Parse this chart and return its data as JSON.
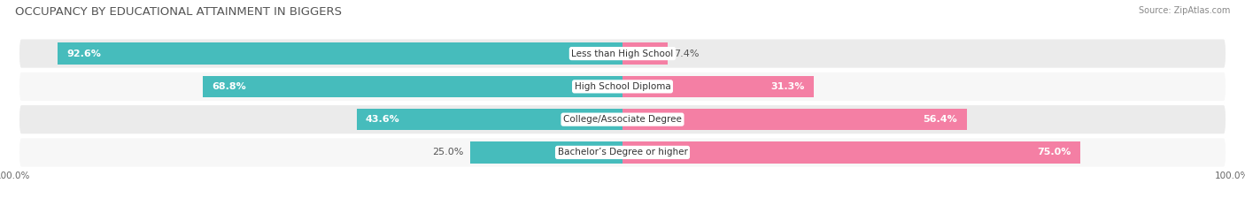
{
  "title": "OCCUPANCY BY EDUCATIONAL ATTAINMENT IN BIGGERS",
  "source": "Source: ZipAtlas.com",
  "categories": [
    "Less than High School",
    "High School Diploma",
    "College/Associate Degree",
    "Bachelor’s Degree or higher"
  ],
  "owner_values": [
    92.6,
    68.8,
    43.6,
    25.0
  ],
  "renter_values": [
    7.4,
    31.3,
    56.4,
    75.0
  ],
  "owner_color": "#46BCBC",
  "renter_color": "#F47FA4",
  "row_bg_even": "#EBEBEB",
  "row_bg_odd": "#F7F7F7",
  "title_fontsize": 9.5,
  "source_fontsize": 7,
  "bar_label_fontsize": 8,
  "category_fontsize": 7.5,
  "legend_fontsize": 7.5,
  "figsize": [
    14.06,
    2.33
  ],
  "dpi": 100,
  "total_width": 100
}
